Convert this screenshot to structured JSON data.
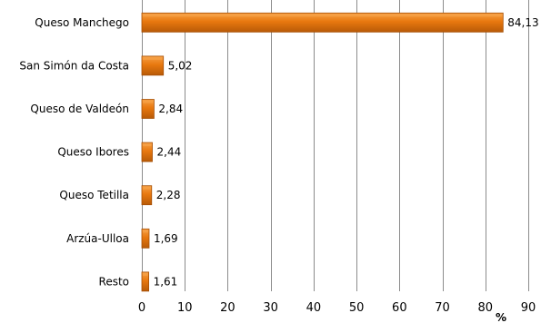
{
  "chart_data": {
    "type": "bar",
    "orientation": "horizontal",
    "categories": [
      "Queso Manchego",
      "San Simón da Costa",
      "Queso de Valdeón",
      "Queso Ibores",
      "Queso Tetilla",
      "Arzúa-Ulloa",
      "Resto"
    ],
    "values": [
      84.13,
      5.02,
      2.84,
      2.44,
      2.28,
      1.69,
      1.61
    ],
    "value_labels": [
      "84,13",
      "5,02",
      "2,84",
      "2,44",
      "2,28",
      "1,69",
      "1,61"
    ],
    "xlim": [
      0,
      90
    ],
    "xticks": [
      0,
      10,
      20,
      30,
      40,
      50,
      60,
      70,
      80,
      90
    ],
    "xlabel": "%",
    "grid": "vertical",
    "colors": {
      "bar_fill": "#E8780F",
      "bar_light": "#F6A045",
      "bar_dark": "#A64F05",
      "grid": "#8c8c8c"
    }
  }
}
